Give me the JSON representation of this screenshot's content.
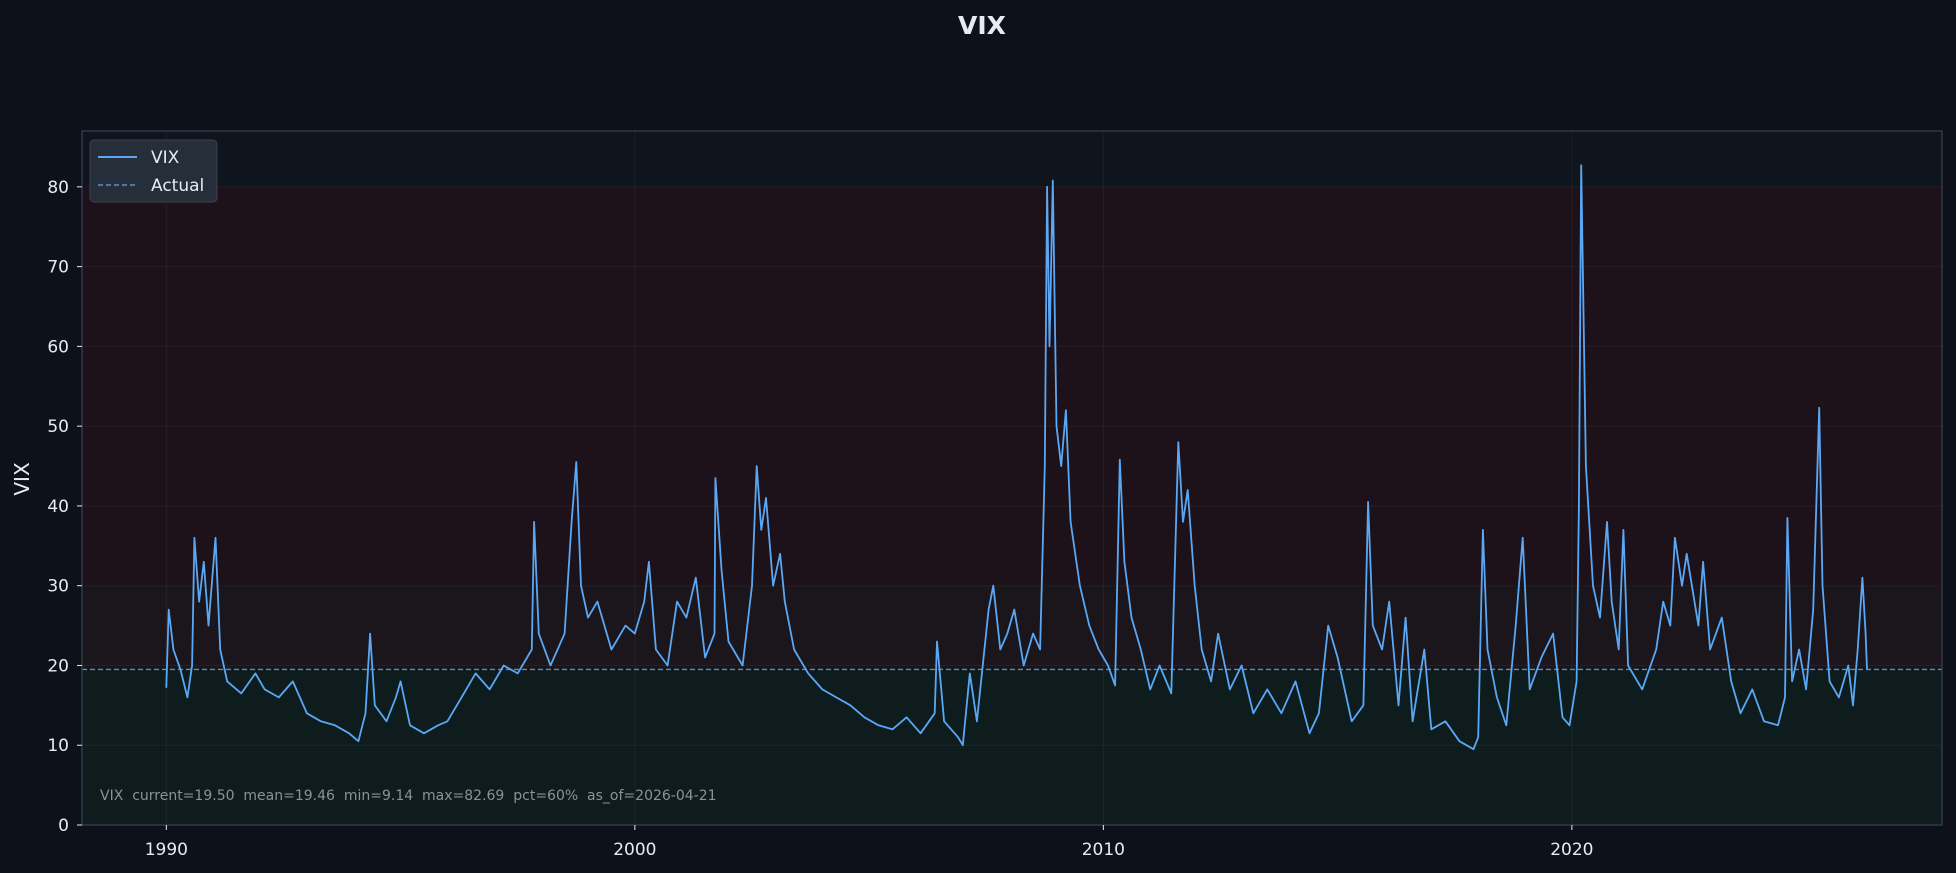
{
  "chart_data": {
    "type": "line",
    "title": "VIX",
    "xlabel": "",
    "ylabel": "VIX",
    "xlim": [
      1988.2,
      2027.9
    ],
    "ylim": [
      0,
      87
    ],
    "x_ticks": [
      1990,
      2000,
      2010,
      2020
    ],
    "y_ticks": [
      0,
      10,
      20,
      30,
      40,
      50,
      60,
      70,
      80
    ],
    "grid": true,
    "legend_position": "top-left",
    "legend": [
      {
        "label": "VIX",
        "style": "solid"
      },
      {
        "label": "Actual",
        "style": "dashed"
      }
    ],
    "bands": [
      {
        "from": 0,
        "to": 19.5,
        "color": "#0e1c1e"
      },
      {
        "from": 19.5,
        "to": 30,
        "color": "#1a161b"
      },
      {
        "from": 30,
        "to": 80,
        "color": "#1d121a"
      }
    ],
    "reference_line": {
      "name": "Actual",
      "y": 19.5,
      "color": "#5a8ec4"
    },
    "annotation": "VIX  current=19.50  mean=19.46  min=9.14  max=82.69  pct=60%  as_of=2026-04-21",
    "series": [
      {
        "name": "VIX",
        "color": "#5aa8f5",
        "points": [
          [
            1990.0,
            17.2
          ],
          [
            1990.05,
            27.0
          ],
          [
            1990.15,
            22.0
          ],
          [
            1990.3,
            19.5
          ],
          [
            1990.45,
            16.0
          ],
          [
            1990.55,
            20.0
          ],
          [
            1990.6,
            36.0
          ],
          [
            1990.7,
            28.0
          ],
          [
            1990.8,
            33.0
          ],
          [
            1990.9,
            25.0
          ],
          [
            1991.05,
            36.0
          ],
          [
            1991.15,
            22.0
          ],
          [
            1991.3,
            18.0
          ],
          [
            1991.6,
            16.5
          ],
          [
            1991.9,
            19.0
          ],
          [
            1992.1,
            17.0
          ],
          [
            1992.4,
            16.0
          ],
          [
            1992.7,
            18.0
          ],
          [
            1993.0,
            14.0
          ],
          [
            1993.3,
            13.0
          ],
          [
            1993.6,
            12.5
          ],
          [
            1993.9,
            11.5
          ],
          [
            1994.1,
            10.5
          ],
          [
            1994.25,
            14.0
          ],
          [
            1994.35,
            24.0
          ],
          [
            1994.45,
            15.0
          ],
          [
            1994.7,
            13.0
          ],
          [
            1994.9,
            16.0
          ],
          [
            1995.0,
            18.0
          ],
          [
            1995.2,
            12.5
          ],
          [
            1995.5,
            11.5
          ],
          [
            1995.8,
            12.5
          ],
          [
            1996.0,
            13.0
          ],
          [
            1996.3,
            16.0
          ],
          [
            1996.6,
            19.0
          ],
          [
            1996.9,
            17.0
          ],
          [
            1997.2,
            20.0
          ],
          [
            1997.5,
            19.0
          ],
          [
            1997.8,
            22.0
          ],
          [
            1997.85,
            38.0
          ],
          [
            1997.95,
            24.0
          ],
          [
            1998.2,
            20.0
          ],
          [
            1998.5,
            24.0
          ],
          [
            1998.65,
            38.0
          ],
          [
            1998.75,
            45.5
          ],
          [
            1998.85,
            30.0
          ],
          [
            1999.0,
            26.0
          ],
          [
            1999.2,
            28.0
          ],
          [
            1999.5,
            22.0
          ],
          [
            1999.8,
            25.0
          ],
          [
            2000.0,
            24.0
          ],
          [
            2000.2,
            28.0
          ],
          [
            2000.3,
            33.0
          ],
          [
            2000.45,
            22.0
          ],
          [
            2000.7,
            20.0
          ],
          [
            2000.9,
            28.0
          ],
          [
            2001.1,
            26.0
          ],
          [
            2001.3,
            31.0
          ],
          [
            2001.5,
            21.0
          ],
          [
            2001.7,
            24.0
          ],
          [
            2001.72,
            43.5
          ],
          [
            2001.85,
            32.0
          ],
          [
            2002.0,
            23.0
          ],
          [
            2002.3,
            20.0
          ],
          [
            2002.5,
            30.0
          ],
          [
            2002.6,
            45.0
          ],
          [
            2002.7,
            37.0
          ],
          [
            2002.8,
            41.0
          ],
          [
            2002.95,
            30.0
          ],
          [
            2003.1,
            34.0
          ],
          [
            2003.2,
            28.0
          ],
          [
            2003.4,
            22.0
          ],
          [
            2003.7,
            19.0
          ],
          [
            2004.0,
            17.0
          ],
          [
            2004.3,
            16.0
          ],
          [
            2004.6,
            15.0
          ],
          [
            2004.9,
            13.5
          ],
          [
            2005.2,
            12.5
          ],
          [
            2005.5,
            12.0
          ],
          [
            2005.8,
            13.5
          ],
          [
            2006.1,
            11.5
          ],
          [
            2006.4,
            14.0
          ],
          [
            2006.45,
            23.0
          ],
          [
            2006.6,
            13.0
          ],
          [
            2006.9,
            11.0
          ],
          [
            2007.0,
            10.0
          ],
          [
            2007.15,
            19.0
          ],
          [
            2007.3,
            13.0
          ],
          [
            2007.55,
            27.0
          ],
          [
            2007.65,
            30.0
          ],
          [
            2007.8,
            22.0
          ],
          [
            2007.95,
            24.0
          ],
          [
            2008.1,
            27.0
          ],
          [
            2008.3,
            20.0
          ],
          [
            2008.5,
            24.0
          ],
          [
            2008.65,
            22.0
          ],
          [
            2008.75,
            45.0
          ],
          [
            2008.8,
            80.0
          ],
          [
            2008.85,
            60.0
          ],
          [
            2008.92,
            80.8
          ],
          [
            2009.0,
            50.0
          ],
          [
            2009.1,
            45.0
          ],
          [
            2009.2,
            52.0
          ],
          [
            2009.3,
            38.0
          ],
          [
            2009.5,
            30.0
          ],
          [
            2009.7,
            25.0
          ],
          [
            2009.9,
            22.0
          ],
          [
            2010.1,
            20.0
          ],
          [
            2010.25,
            17.5
          ],
          [
            2010.35,
            45.8
          ],
          [
            2010.45,
            33.0
          ],
          [
            2010.6,
            26.0
          ],
          [
            2010.8,
            22.0
          ],
          [
            2011.0,
            17.0
          ],
          [
            2011.2,
            20.0
          ],
          [
            2011.45,
            16.5
          ],
          [
            2011.6,
            48.0
          ],
          [
            2011.7,
            38.0
          ],
          [
            2011.8,
            42.0
          ],
          [
            2011.95,
            30.0
          ],
          [
            2012.1,
            22.0
          ],
          [
            2012.3,
            18.0
          ],
          [
            2012.45,
            24.0
          ],
          [
            2012.7,
            17.0
          ],
          [
            2012.95,
            20.0
          ],
          [
            2013.2,
            14.0
          ],
          [
            2013.5,
            17.0
          ],
          [
            2013.8,
            14.0
          ],
          [
            2014.1,
            18.0
          ],
          [
            2014.4,
            11.5
          ],
          [
            2014.6,
            14.0
          ],
          [
            2014.8,
            25.0
          ],
          [
            2015.0,
            21.0
          ],
          [
            2015.3,
            13.0
          ],
          [
            2015.55,
            15.0
          ],
          [
            2015.65,
            40.5
          ],
          [
            2015.75,
            25.0
          ],
          [
            2015.95,
            22.0
          ],
          [
            2016.1,
            28.0
          ],
          [
            2016.3,
            15.0
          ],
          [
            2016.45,
            26.0
          ],
          [
            2016.6,
            13.0
          ],
          [
            2016.85,
            22.0
          ],
          [
            2017.0,
            12.0
          ],
          [
            2017.3,
            13.0
          ],
          [
            2017.6,
            10.5
          ],
          [
            2017.9,
            9.5
          ],
          [
            2018.0,
            11.0
          ],
          [
            2018.1,
            37.0
          ],
          [
            2018.2,
            22.0
          ],
          [
            2018.4,
            16.0
          ],
          [
            2018.6,
            12.5
          ],
          [
            2018.8,
            25.0
          ],
          [
            2018.95,
            36.0
          ],
          [
            2019.1,
            17.0
          ],
          [
            2019.35,
            21.0
          ],
          [
            2019.6,
            24.0
          ],
          [
            2019.8,
            13.5
          ],
          [
            2019.95,
            12.5
          ],
          [
            2020.1,
            18.0
          ],
          [
            2020.15,
            40.0
          ],
          [
            2020.2,
            82.7
          ],
          [
            2020.3,
            45.0
          ],
          [
            2020.45,
            30.0
          ],
          [
            2020.6,
            26.0
          ],
          [
            2020.75,
            38.0
          ],
          [
            2020.85,
            28.0
          ],
          [
            2021.0,
            22.0
          ],
          [
            2021.1,
            37.0
          ],
          [
            2021.2,
            20.0
          ],
          [
            2021.5,
            17.0
          ],
          [
            2021.8,
            22.0
          ],
          [
            2021.95,
            28.0
          ],
          [
            2022.1,
            25.0
          ],
          [
            2022.2,
            36.0
          ],
          [
            2022.35,
            30.0
          ],
          [
            2022.45,
            34.0
          ],
          [
            2022.7,
            25.0
          ],
          [
            2022.8,
            33.0
          ],
          [
            2022.95,
            22.0
          ],
          [
            2023.2,
            26.0
          ],
          [
            2023.4,
            18.0
          ],
          [
            2023.6,
            14.0
          ],
          [
            2023.85,
            17.0
          ],
          [
            2024.1,
            13.0
          ],
          [
            2024.4,
            12.5
          ],
          [
            2024.55,
            16.0
          ],
          [
            2024.6,
            38.5
          ],
          [
            2024.7,
            18.0
          ],
          [
            2024.85,
            22.0
          ],
          [
            2025.0,
            17.0
          ],
          [
            2025.15,
            27.0
          ],
          [
            2025.28,
            52.3
          ],
          [
            2025.35,
            30.0
          ],
          [
            2025.5,
            18.0
          ],
          [
            2025.7,
            16.0
          ],
          [
            2025.9,
            20.0
          ],
          [
            2026.0,
            15.0
          ],
          [
            2026.1,
            22.0
          ],
          [
            2026.2,
            31.0
          ],
          [
            2026.27,
            24.0
          ],
          [
            2026.3,
            19.5
          ]
        ]
      }
    ]
  }
}
